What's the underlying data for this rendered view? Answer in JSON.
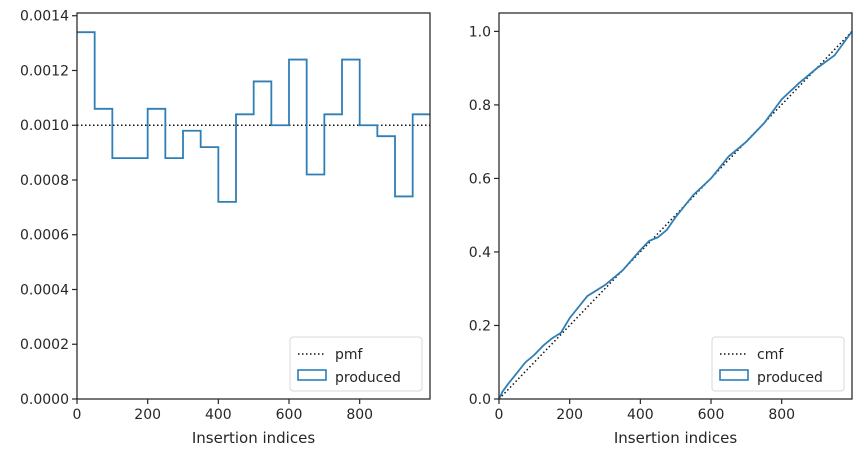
{
  "chart_data": [
    {
      "type": "line",
      "subtype": "step-histogram",
      "title": "",
      "xlabel": "Insertion indices",
      "ylabel": "",
      "xlim": [
        0,
        999
      ],
      "ylim": [
        0,
        0.00141
      ],
      "x_ticks": [
        0,
        200,
        400,
        600,
        800
      ],
      "x_tick_labels": [
        "0",
        "200",
        "400",
        "600",
        "800"
      ],
      "y_ticks": [
        0,
        0.0002,
        0.0004,
        0.0006,
        0.0008,
        0.001,
        0.0012,
        0.0014
      ],
      "y_tick_labels": [
        "0.0000",
        "0.0002",
        "0.0004",
        "0.0006",
        "0.0008",
        "0.0010",
        "0.0012",
        "0.0014"
      ],
      "grid": false,
      "legend_position": "lower-right",
      "series": [
        {
          "name": "pmf",
          "style": "dotted",
          "color": "#111111",
          "x": [
            0,
            999
          ],
          "y": [
            0.001,
            0.001
          ]
        },
        {
          "name": "produced",
          "style": "step",
          "color": "#2f7fb6",
          "bin_edges": [
            0,
            50,
            100,
            150,
            200,
            250,
            300,
            350,
            400,
            450,
            500,
            550,
            600,
            650,
            700,
            750,
            800,
            850,
            900,
            950,
            999
          ],
          "values": [
            0.00134,
            0.00106,
            0.00088,
            0.00088,
            0.00106,
            0.00088,
            0.00098,
            0.00092,
            0.00072,
            0.00104,
            0.00116,
            0.001,
            0.00124,
            0.00082,
            0.00104,
            0.00124,
            0.001,
            0.00096,
            0.00074,
            0.00104
          ]
        }
      ]
    },
    {
      "type": "line",
      "subtype": "cumulative",
      "title": "",
      "xlabel": "Insertion indices",
      "ylabel": "",
      "xlim": [
        0,
        999
      ],
      "ylim": [
        0,
        1.05
      ],
      "x_ticks": [
        0,
        200,
        400,
        600,
        800
      ],
      "x_tick_labels": [
        "0",
        "200",
        "400",
        "600",
        "800"
      ],
      "y_ticks": [
        0,
        0.2,
        0.4,
        0.6,
        0.8,
        1.0
      ],
      "y_tick_labels": [
        "0.0",
        "0.2",
        "0.4",
        "0.6",
        "0.8",
        "1.0"
      ],
      "grid": false,
      "legend_position": "lower-right",
      "series": [
        {
          "name": "cmf",
          "style": "dotted",
          "color": "#111111",
          "x": [
            0,
            999
          ],
          "y": [
            0,
            1.0
          ]
        },
        {
          "name": "produced",
          "style": "line",
          "color": "#2f7fb6",
          "x": [
            0,
            10,
            25,
            50,
            75,
            100,
            125,
            150,
            175,
            200,
            250,
            300,
            350,
            400,
            425,
            450,
            475,
            500,
            550,
            600,
            650,
            700,
            750,
            800,
            850,
            900,
            950,
            999
          ],
          "y": [
            0,
            0.02,
            0.04,
            0.07,
            0.1,
            0.12,
            0.145,
            0.165,
            0.18,
            0.22,
            0.28,
            0.31,
            0.35,
            0.405,
            0.43,
            0.44,
            0.46,
            0.495,
            0.555,
            0.6,
            0.66,
            0.7,
            0.75,
            0.815,
            0.86,
            0.9,
            0.935,
            1.0
          ]
        }
      ]
    }
  ]
}
